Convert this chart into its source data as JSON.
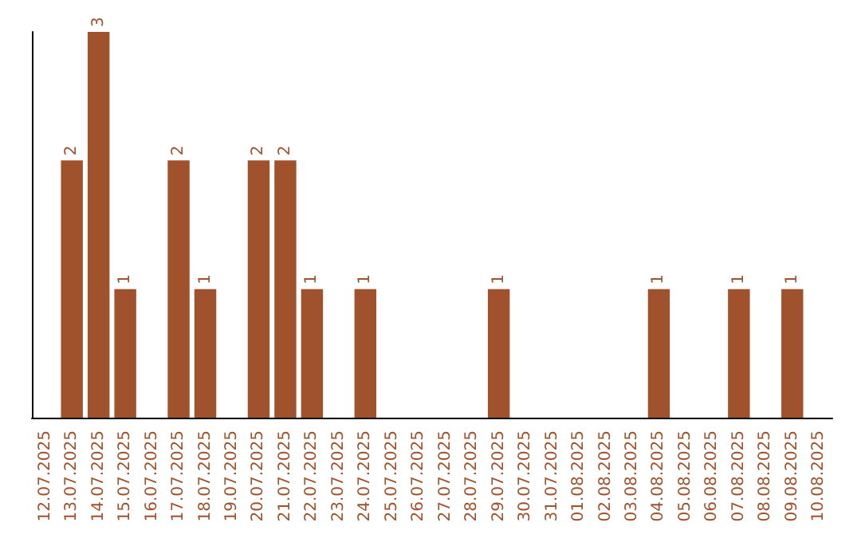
{
  "chart_data": {
    "type": "bar",
    "categories": [
      "12.07.2025",
      "13.07.2025",
      "14.07.2025",
      "15.07.2025",
      "16.07.2025",
      "17.07.2025",
      "18.07.2025",
      "19.07.2025",
      "20.07.2025",
      "21.07.2025",
      "22.07.2025",
      "23.07.2025",
      "24.07.2025",
      "25.07.2025",
      "26.07.2025",
      "27.07.2025",
      "28.07.2025",
      "29.07.2025",
      "30.07.2025",
      "31.07.2025",
      "01.08.2025",
      "02.08.2025",
      "03.08.2025",
      "04.08.2025",
      "05.08.2025",
      "06.08.2025",
      "07.08.2025",
      "08.08.2025",
      "09.08.2025",
      "10.08.2025"
    ],
    "values": [
      null,
      2,
      3,
      1,
      null,
      2,
      1,
      null,
      2,
      2,
      1,
      null,
      1,
      null,
      null,
      null,
      null,
      1,
      null,
      null,
      null,
      null,
      null,
      1,
      null,
      null,
      1,
      null,
      1,
      null
    ],
    "color": "#a0522d",
    "ylim": [
      0,
      3
    ],
    "tick_labels": "x",
    "data_labels": true
  }
}
